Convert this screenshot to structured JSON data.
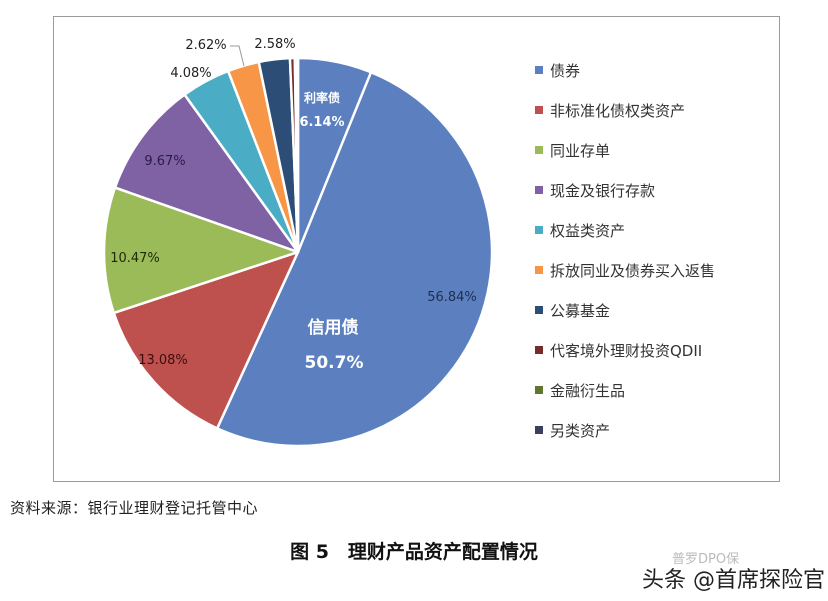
{
  "chart_data": {
    "type": "pie",
    "title": "理财产品资产配置情况",
    "figure_label": "图 5",
    "categories": [
      "债券",
      "非标准化债权类资产",
      "同业存单",
      "现金及银行存款",
      "权益类资产",
      "拆放同业及债券买入返售",
      "公募基金",
      "代客境外理财投资QDII",
      "金融衍生品",
      "另类资产"
    ],
    "values": [
      56.84,
      13.08,
      10.47,
      9.67,
      4.08,
      2.62,
      2.58,
      0.4,
      0.05,
      0.21
    ],
    "colors": [
      "#5B7FBF",
      "#BE514E",
      "#9BBB59",
      "#7E62A3",
      "#4BACC6",
      "#F79646",
      "#2C4D75",
      "#772C2A",
      "#5F7530",
      "#3D3D5C"
    ],
    "labels": [
      "56.84%",
      "13.08%",
      "10.47%",
      "9.67%",
      "4.08%",
      "2.62%",
      "2.58%",
      "",
      "",
      ""
    ],
    "sub_breakdown": {
      "parent": "债券",
      "items": [
        {
          "name": "利率债",
          "value": 6.14,
          "label": "6.14%"
        },
        {
          "name": "信用债",
          "value": 50.7,
          "label": "50.7%"
        }
      ]
    },
    "start_angle_deg": 0,
    "direction": "clockwise",
    "legend_position": "right"
  },
  "legend": {
    "items": [
      {
        "label": "债券",
        "color": "#5B7FBF"
      },
      {
        "label": "非标准化债权类资产",
        "color": "#BE514E"
      },
      {
        "label": "同业存单",
        "color": "#9BBB59"
      },
      {
        "label": "现金及银行存款",
        "color": "#7E62A3"
      },
      {
        "label": "权益类资产",
        "color": "#4BACC6"
      },
      {
        "label": "拆放同业及债券买入返售",
        "color": "#F79646"
      },
      {
        "label": "公募基金",
        "color": "#2C4D75"
      },
      {
        "label": "代客境外理财投资QDII",
        "color": "#772C2A"
      },
      {
        "label": "金融衍生品",
        "color": "#5F7530"
      },
      {
        "label": "另类资产",
        "color": "#3D3D5C"
      }
    ]
  },
  "annotations": {
    "rate_bond_name": "利率债",
    "rate_bond_value": "6.14%",
    "credit_bond_name": "信用债",
    "credit_bond_value": "50.7%"
  },
  "source": "资料来源：银行业理财登记托管中心",
  "caption": "图 5　理财产品资产配置情况",
  "watermark": "头条 @首席探险官",
  "watermark_faint": "普罗DPO保"
}
